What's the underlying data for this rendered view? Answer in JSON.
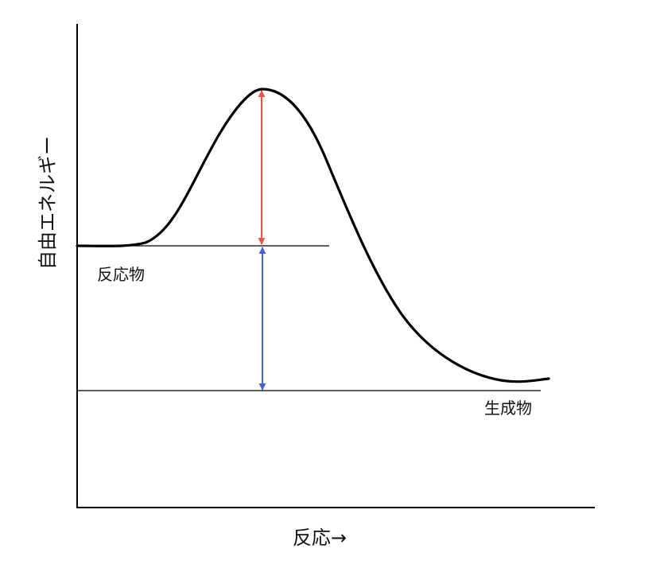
{
  "diagram": {
    "y_axis_label": "自由エネルギー",
    "x_axis_label": "反応→",
    "reactant_label": "反応物",
    "product_label": "生成物"
  },
  "colors": {
    "curve": "#000000",
    "axis": "#000000",
    "activation_energy_arrow": "#e05a4e",
    "reaction_energy_arrow": "#4a5fd8"
  }
}
